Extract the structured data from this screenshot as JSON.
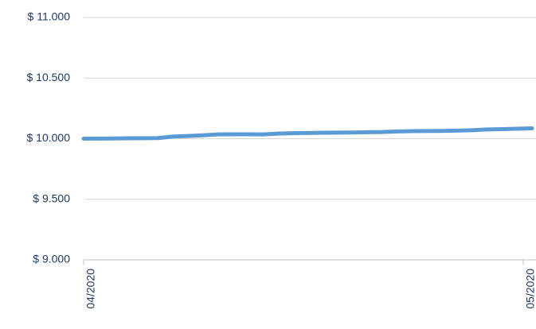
{
  "chart_data": {
    "type": "line",
    "categories": [
      "04/2020",
      null,
      null,
      null,
      null,
      null,
      null,
      null,
      null,
      null,
      null,
      null,
      null,
      null,
      null,
      null,
      null,
      null,
      null,
      null,
      null,
      null,
      null,
      null,
      null,
      null,
      null,
      null,
      null,
      null,
      "05/2020"
    ],
    "series": [
      {
        "color": "#5b9bd5",
        "values": [
          10000,
          10001,
          10002,
          10003,
          10004,
          10005,
          10018,
          10022,
          10028,
          10035,
          10036,
          10036,
          10035,
          10042,
          10045,
          10047,
          10049,
          10050,
          10051,
          10053,
          10055,
          10060,
          10062,
          10063,
          10064,
          10066,
          10070,
          10076,
          10079,
          10082,
          10085
        ]
      }
    ],
    "ylim": [
      9000,
      11000
    ],
    "yticks": [
      {
        "value": 9000,
        "label": "$ 9.000"
      },
      {
        "value": 9500,
        "label": "$ 9.500"
      },
      {
        "value": 10000,
        "label": "$ 10.000"
      },
      {
        "value": 10500,
        "label": "$ 10.500"
      },
      {
        "value": 11000,
        "label": "$ 11.000"
      }
    ],
    "grid": true
  }
}
